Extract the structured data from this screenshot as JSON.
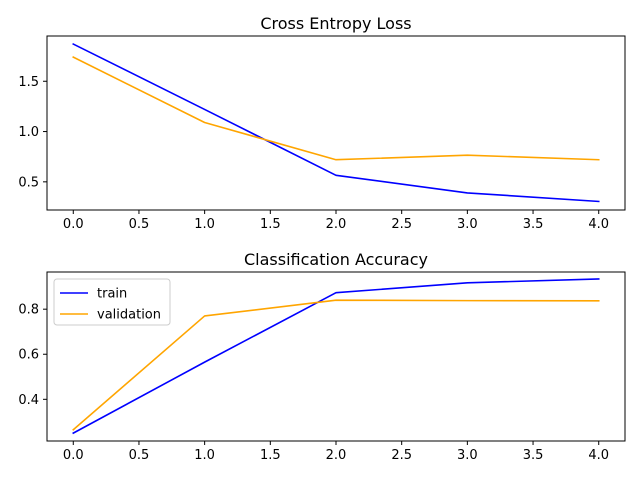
{
  "chart_data": [
    {
      "type": "line",
      "title": "Cross Entropy Loss",
      "xlabel": "",
      "ylabel": "",
      "xlim": [
        -0.2,
        4.2
      ],
      "ylim": [
        0.22,
        1.95
      ],
      "xticks": [
        0.0,
        0.5,
        1.0,
        1.5,
        2.0,
        2.5,
        3.0,
        3.5,
        4.0
      ],
      "xtick_labels": [
        "0.0",
        "0.5",
        "1.0",
        "1.5",
        "2.0",
        "2.5",
        "3.0",
        "3.5",
        "4.0"
      ],
      "yticks": [
        0.5,
        1.0,
        1.5
      ],
      "ytick_labels": [
        "0.5",
        "1.0",
        "1.5"
      ],
      "grid": false,
      "legend": false,
      "x": [
        0,
        1,
        2,
        3,
        4
      ],
      "series": [
        {
          "label": "train",
          "color": "#0000ff",
          "values": [
            1.87,
            1.22,
            0.565,
            0.39,
            0.305
          ]
        },
        {
          "label": "validation",
          "color": "#ffa500",
          "values": [
            1.74,
            1.09,
            0.72,
            0.765,
            0.72
          ]
        }
      ]
    },
    {
      "type": "line",
      "title": "Classification Accuracy",
      "xlabel": "",
      "ylabel": "",
      "xlim": [
        -0.2,
        4.2
      ],
      "ylim": [
        0.215,
        0.965
      ],
      "xticks": [
        0.0,
        0.5,
        1.0,
        1.5,
        2.0,
        2.5,
        3.0,
        3.5,
        4.0
      ],
      "xtick_labels": [
        "0.0",
        "0.5",
        "1.0",
        "1.5",
        "2.0",
        "2.5",
        "3.0",
        "3.5",
        "4.0"
      ],
      "yticks": [
        0.4,
        0.6,
        0.8
      ],
      "ytick_labels": [
        "0.4",
        "0.6",
        "0.8"
      ],
      "grid": false,
      "legend": "upper-left",
      "x": [
        0,
        1,
        2,
        3,
        4
      ],
      "series": [
        {
          "name": "train",
          "label": "train",
          "color": "#0000ff",
          "values": [
            0.25,
            0.565,
            0.873,
            0.917,
            0.934
          ]
        },
        {
          "name": "validation",
          "label": "validation",
          "color": "#ffa500",
          "values": [
            0.265,
            0.77,
            0.84,
            0.838,
            0.837
          ]
        }
      ]
    }
  ]
}
